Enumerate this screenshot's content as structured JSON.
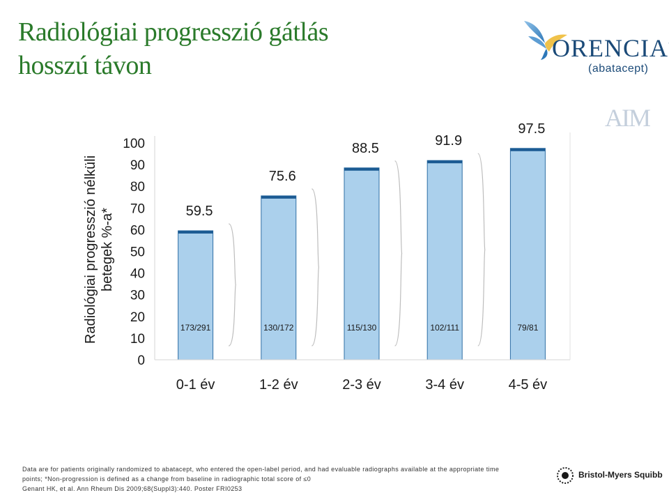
{
  "header": {
    "title_lines": [
      "Radiológiai progresszió gátlás",
      "hosszú távon"
    ]
  },
  "logo": {
    "brand": "ORENCIA",
    "trademark": "™",
    "generic": "(abatacept)",
    "icon": "dove-logo-icon"
  },
  "aim_label": "AIM",
  "chart_data": {
    "type": "bar",
    "categories": [
      "0-1 év",
      "1-2 év",
      "2-3 év",
      "3-4 év",
      "4-5 év"
    ],
    "values": [
      59.5,
      75.6,
      88.5,
      91.9,
      97.5
    ],
    "value_labels": [
      "59.5",
      "75.6",
      "88.5",
      "91.9",
      "97.5"
    ],
    "counts": [
      "173/291",
      "130/172",
      "115/130",
      "102/111",
      "79/81"
    ],
    "ylabel_lines": [
      "Radiológiai progresszió nélküli",
      "betegek %-a*"
    ],
    "yticks": [
      0,
      10,
      20,
      30,
      40,
      50,
      60,
      70,
      80,
      90,
      100
    ],
    "ylim": [
      0,
      100
    ],
    "grid": false,
    "colors": {
      "bar_fill": "#abd0ec",
      "bar_edge": "#2f6fa6",
      "bar_top": "#1c5b93"
    }
  },
  "footnote": {
    "lines": [
      "Data are for patients originally randomized to abatacept, who entered the open-label period, and had evaluable radiographs available at the appropriate time",
      "points; *Non-progression is defined as a change from baseline in radiographic total score of ≤0",
      "Genant HK, et al. Ann Rheum Dis 2009;68(Suppl3):440. Poster FRI0253"
    ]
  },
  "sponsor": {
    "name": "Bristol-Myers Squibb",
    "icon": "bms-logo-icon"
  }
}
